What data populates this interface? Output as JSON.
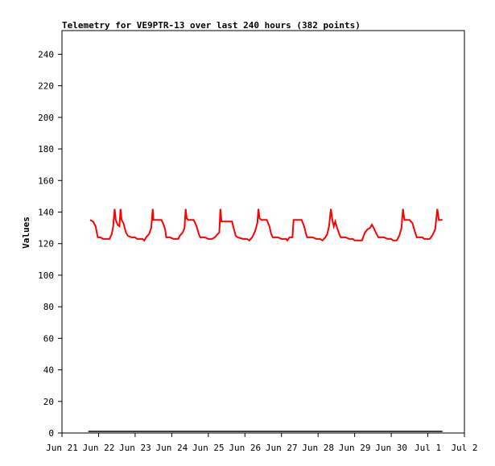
{
  "chart_data": {
    "type": "line",
    "title": "Telemetry for VE9PTR-13 over last 240 hours (382 points)",
    "xlabel": "",
    "ylabel": "Values",
    "ylim": [
      0,
      255
    ],
    "yticks": [
      0,
      20,
      40,
      60,
      80,
      100,
      120,
      140,
      160,
      180,
      200,
      220,
      240
    ],
    "xlim": [
      "Jun 21",
      "Jul 2"
    ],
    "xticks": [
      "Jun 21",
      "Jun 22",
      "Jun 23",
      "Jun 24",
      "Jun 25",
      "Jun 26",
      "Jun 27",
      "Jun 28",
      "Jun 29",
      "Jun 30",
      "Jul 1",
      "Jul 2"
    ],
    "grid": false,
    "legend": "none",
    "series": [
      {
        "color": "#ff0000",
        "x_days_note": "x values are in days, where 0 = Jun 21 and 11 = Jul 2",
        "points": [
          [
            0.77,
            135
          ],
          [
            0.85,
            134
          ],
          [
            0.92,
            131
          ],
          [
            0.96,
            126
          ],
          [
            0.98,
            124
          ],
          [
            1.05,
            124
          ],
          [
            1.12,
            123
          ],
          [
            1.3,
            123
          ],
          [
            1.36,
            126
          ],
          [
            1.4,
            131
          ],
          [
            1.44,
            142
          ],
          [
            1.47,
            135
          ],
          [
            1.52,
            132
          ],
          [
            1.57,
            131
          ],
          [
            1.6,
            142
          ],
          [
            1.63,
            135
          ],
          [
            1.68,
            133
          ],
          [
            1.75,
            127
          ],
          [
            1.8,
            125
          ],
          [
            1.9,
            124
          ],
          [
            2.0,
            124
          ],
          [
            2.05,
            123
          ],
          [
            2.2,
            123
          ],
          [
            2.25,
            122
          ],
          [
            2.3,
            124
          ],
          [
            2.38,
            126
          ],
          [
            2.44,
            130
          ],
          [
            2.48,
            142
          ],
          [
            2.5,
            135
          ],
          [
            2.6,
            135
          ],
          [
            2.72,
            135
          ],
          [
            2.78,
            132
          ],
          [
            2.82,
            129
          ],
          [
            2.85,
            124
          ],
          [
            2.95,
            124
          ],
          [
            3.05,
            123
          ],
          [
            3.18,
            123
          ],
          [
            3.22,
            125
          ],
          [
            3.3,
            127
          ],
          [
            3.35,
            130
          ],
          [
            3.38,
            142
          ],
          [
            3.41,
            136
          ],
          [
            3.45,
            135
          ],
          [
            3.6,
            135
          ],
          [
            3.68,
            131
          ],
          [
            3.74,
            126
          ],
          [
            3.78,
            124
          ],
          [
            3.9,
            124
          ],
          [
            4.0,
            123
          ],
          [
            4.1,
            123
          ],
          [
            4.18,
            124
          ],
          [
            4.25,
            126
          ],
          [
            4.3,
            127
          ],
          [
            4.33,
            142
          ],
          [
            4.36,
            134
          ],
          [
            4.5,
            134
          ],
          [
            4.65,
            134
          ],
          [
            4.7,
            129
          ],
          [
            4.75,
            125
          ],
          [
            4.8,
            124
          ],
          [
            4.95,
            123
          ],
          [
            5.05,
            123
          ],
          [
            5.12,
            122
          ],
          [
            5.2,
            124
          ],
          [
            5.28,
            128
          ],
          [
            5.34,
            133
          ],
          [
            5.37,
            142
          ],
          [
            5.4,
            136
          ],
          [
            5.45,
            135
          ],
          [
            5.6,
            135
          ],
          [
            5.67,
            131
          ],
          [
            5.72,
            126
          ],
          [
            5.76,
            124
          ],
          [
            5.9,
            124
          ],
          [
            6.0,
            123
          ],
          [
            6.13,
            123
          ],
          [
            6.16,
            122
          ],
          [
            6.22,
            124
          ],
          [
            6.3,
            124
          ],
          [
            6.33,
            135
          ],
          [
            6.4,
            135
          ],
          [
            6.55,
            135
          ],
          [
            6.62,
            131
          ],
          [
            6.66,
            127
          ],
          [
            6.7,
            124
          ],
          [
            6.85,
            124
          ],
          [
            6.95,
            123
          ],
          [
            7.05,
            123
          ],
          [
            7.12,
            122
          ],
          [
            7.2,
            124
          ],
          [
            7.25,
            126
          ],
          [
            7.3,
            131
          ],
          [
            7.35,
            142
          ],
          [
            7.39,
            135
          ],
          [
            7.43,
            131
          ],
          [
            7.47,
            134
          ],
          [
            7.52,
            130
          ],
          [
            7.58,
            126
          ],
          [
            7.62,
            124
          ],
          [
            7.75,
            124
          ],
          [
            7.85,
            123
          ],
          [
            7.95,
            123
          ],
          [
            8.0,
            122
          ],
          [
            8.2,
            122
          ],
          [
            8.28,
            127
          ],
          [
            8.35,
            129
          ],
          [
            8.42,
            130
          ],
          [
            8.47,
            132
          ],
          [
            8.52,
            130
          ],
          [
            8.6,
            126
          ],
          [
            8.65,
            124
          ],
          [
            8.8,
            124
          ],
          [
            8.9,
            123
          ],
          [
            9.0,
            123
          ],
          [
            9.05,
            122
          ],
          [
            9.15,
            122
          ],
          [
            9.22,
            125
          ],
          [
            9.28,
            130
          ],
          [
            9.32,
            142
          ],
          [
            9.36,
            135
          ],
          [
            9.5,
            135
          ],
          [
            9.58,
            133
          ],
          [
            9.64,
            128
          ],
          [
            9.7,
            124
          ],
          [
            9.85,
            124
          ],
          [
            9.9,
            123
          ],
          [
            10.05,
            123
          ],
          [
            10.12,
            125
          ],
          [
            10.2,
            129
          ],
          [
            10.26,
            142
          ],
          [
            10.3,
            135
          ],
          [
            10.4,
            135
          ]
        ]
      },
      {
        "color": "#000000",
        "x_days_note": "flat near-zero series",
        "points": [
          [
            0.72,
            1
          ],
          [
            10.4,
            1
          ]
        ]
      }
    ]
  }
}
